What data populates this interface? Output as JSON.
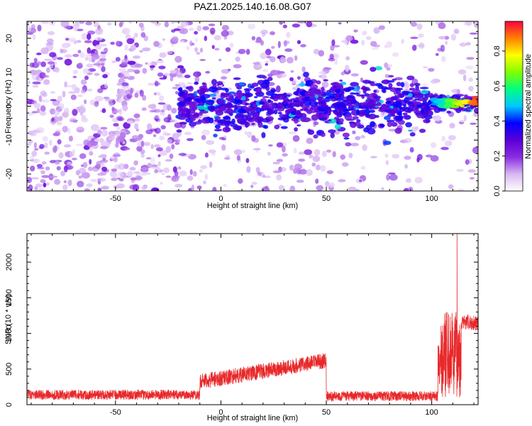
{
  "title": "PAZ1.2025.140.16.08.G07",
  "chart_data": [
    {
      "type": "heatmap",
      "xlabel": "Height of straight line (km)",
      "ylabel": "Frequency (Hz)",
      "xlim": [
        -92,
        122
      ],
      "ylim": [
        -25,
        25
      ],
      "xticks": [
        -50,
        0,
        50,
        100
      ],
      "yticks": [
        -20,
        -10,
        0,
        10,
        20
      ],
      "colorbar": {
        "label": "Normalized spectral amplitude",
        "range": [
          0,
          0.97
        ],
        "ticks": [
          0.0,
          0.2,
          0.4,
          0.6,
          0.8
        ],
        "colors": [
          "#ffffff",
          "#d8b7f2",
          "#8a2be2",
          "#5a00d8",
          "#0000ff",
          "#00c8ff",
          "#00ff80",
          "#80ff00",
          "#ffff00",
          "#ff8000",
          "#ff0040"
        ]
      },
      "ridge": {
        "x_start": -20,
        "x_end": 122,
        "center_freq_start": 0,
        "center_freq_end": 1,
        "note_peak": "strong narrow signal near 1 Hz above 100 km"
      }
    },
    {
      "type": "line",
      "xlabel": "Height of straight line (km)",
      "ylabel": "SNR (10 * v/v)",
      "xlim": [
        -92,
        122
      ],
      "ylim": [
        0,
        2400
      ],
      "xticks": [
        -50,
        0,
        50,
        100
      ],
      "yticks": [
        0,
        500,
        1000,
        1500,
        2000
      ],
      "color": "#e8282a",
      "series": [
        {
          "segments": [
            {
              "x": [
                -92,
                -10
              ],
              "mean": 140,
              "noise": 70
            },
            {
              "x": [
                -10,
                50
              ],
              "mean_start": 320,
              "mean_end": 620,
              "noise": 110
            },
            {
              "x": [
                50,
                103
              ],
              "mean": 120,
              "noise": 70
            },
            {
              "x": [
                103,
                114
              ],
              "mean": 700,
              "noise": 600
            },
            {
              "x": [
                114,
                122
              ],
              "mean": 1150,
              "noise": 110
            }
          ],
          "peak": {
            "x": 112,
            "y": 2400
          }
        }
      ]
    }
  ]
}
